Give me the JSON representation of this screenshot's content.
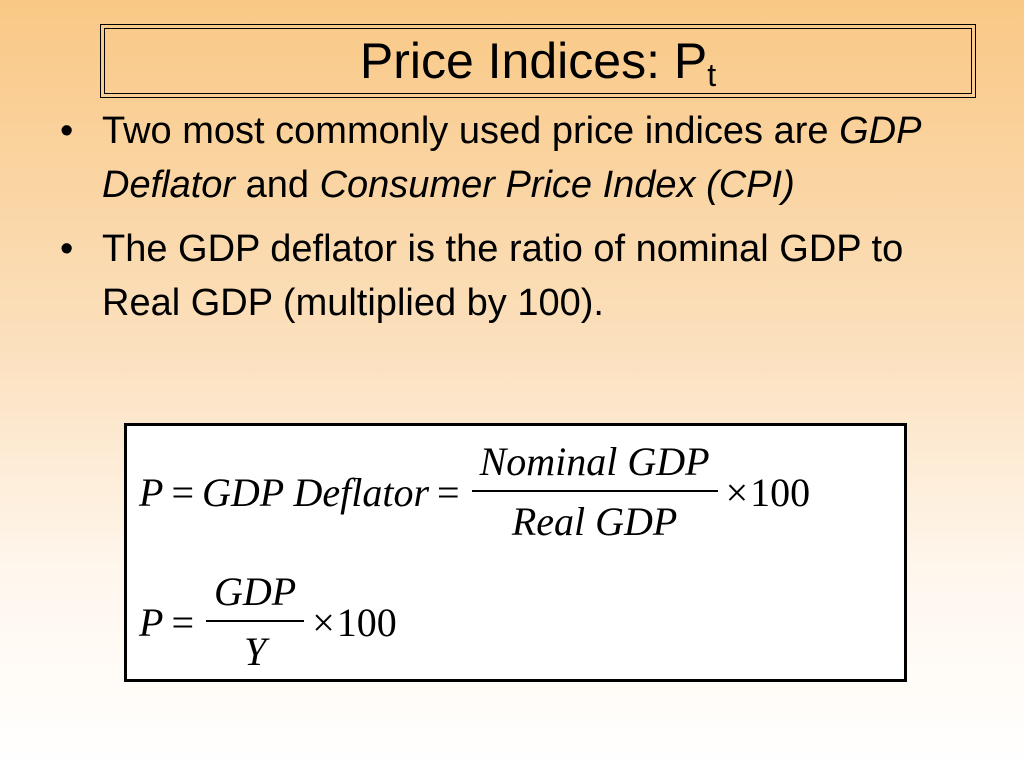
{
  "title": {
    "main": "Price Indices: P",
    "subscript": "t"
  },
  "bullets": [
    {
      "marker": "•",
      "parts": [
        {
          "text": "Two most commonly used price indices are ",
          "italic": false
        },
        {
          "text": "GDP Deflator",
          "italic": true
        },
        {
          "text": " and ",
          "italic": false
        },
        {
          "text": "Consumer Price Index (CPI)",
          "italic": true
        }
      ]
    },
    {
      "marker": "•",
      "parts": [
        {
          "text": "The GDP deflator is the ratio of nominal GDP to Real GDP (multiplied by 100).",
          "italic": false
        }
      ]
    }
  ],
  "formula1": {
    "lhs": "P",
    "equals1": "=",
    "middle": "GDP Deflator",
    "equals2": "=",
    "numerator": "Nominal GDP",
    "denominator": "Real GDP",
    "times": "×",
    "factor": "100"
  },
  "formula2": {
    "lhs": "P",
    "equals": "=",
    "numerator": "GDP",
    "denominator": "Y",
    "times": "×",
    "factor": "100"
  }
}
